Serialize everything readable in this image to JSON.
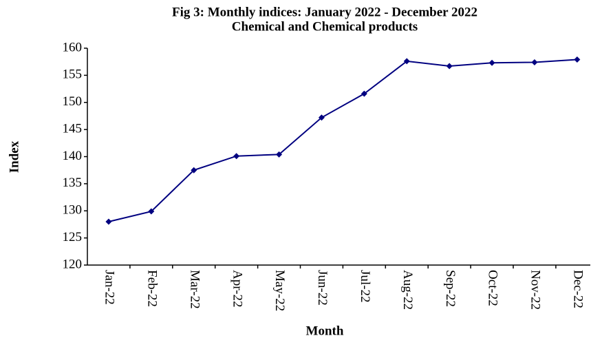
{
  "chart_data": {
    "type": "line",
    "title": "Fig 3: Monthly indices: January 2022 - December 2022",
    "subtitle": "Chemical and Chemical products",
    "x_label": "Month",
    "y_label": "Index",
    "categories": [
      "Jan-22",
      "Feb-22",
      "Mar-22",
      "Apr-22",
      "May-22",
      "Jun-22",
      "Jul-22",
      "Aug-22",
      "Sep-22",
      "Oct-22",
      "Nov-22",
      "Dec-22"
    ],
    "series": [
      {
        "name": "Index",
        "color": "#000080",
        "values": [
          128.0,
          129.9,
          137.5,
          140.1,
          140.4,
          147.2,
          151.6,
          157.6,
          156.7,
          157.3,
          157.4,
          157.9
        ]
      }
    ],
    "ylim": [
      120,
      160
    ],
    "yticks": [
      120,
      125,
      130,
      135,
      140,
      145,
      150,
      155,
      160
    ],
    "grid": false
  }
}
